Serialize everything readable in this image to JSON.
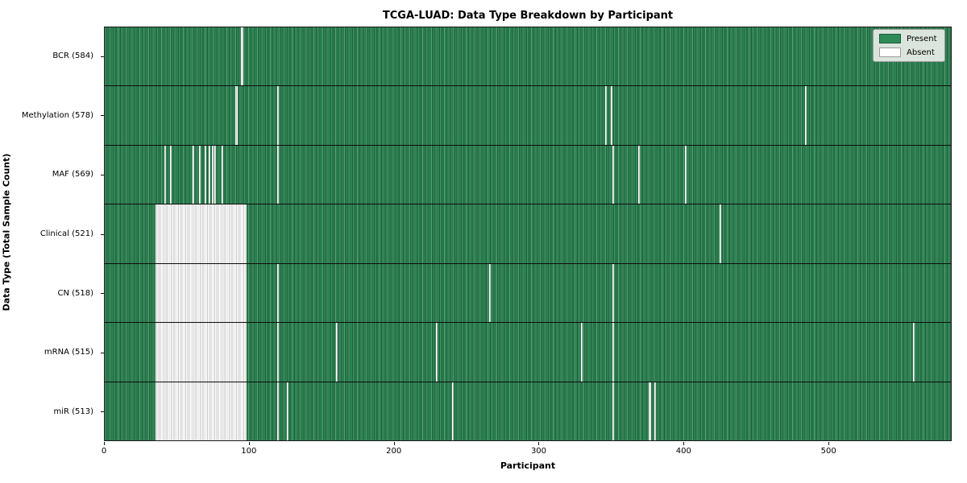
{
  "chart_data": {
    "type": "heatmap",
    "title": "TCGA-LUAD: Data Type Breakdown by Participant",
    "xlabel": "Participant",
    "ylabel": "Data Type (Total Sample Count)",
    "x_max": 585,
    "x_ticks": [
      0,
      100,
      200,
      300,
      400,
      500
    ],
    "grid": false,
    "legend_position": "upper right",
    "colors": {
      "present": "#2e8b57",
      "present_edge": "#1d5c39",
      "absent": "#ffffff",
      "absent_edge": "#c7c7c7",
      "row_separator": "#0d0d0d"
    },
    "legend": [
      {
        "label": "Present",
        "color": "#2e8b57",
        "edge": "#1d5c39"
      },
      {
        "label": "Absent",
        "color": "#ffffff",
        "edge": "#9a9a9a"
      }
    ],
    "rows": [
      {
        "name": "BCR",
        "label": "BCR (584)",
        "present_count": 584,
        "absent_ranges": [
          [
            94,
            96
          ]
        ]
      },
      {
        "name": "Methylation",
        "label": "Methylation (578)",
        "present_count": 578,
        "absent_ranges": [
          [
            90,
            92
          ],
          [
            119,
            120
          ],
          [
            346,
            347
          ],
          [
            350,
            351
          ],
          [
            484,
            485
          ]
        ]
      },
      {
        "name": "MAF",
        "label": "MAF (569)",
        "present_count": 569,
        "absent_ranges": [
          [
            41,
            42
          ],
          [
            45,
            46
          ],
          [
            61,
            62
          ],
          [
            65,
            66
          ],
          [
            69,
            70
          ],
          [
            72,
            73
          ],
          [
            74,
            75
          ],
          [
            76,
            77
          ],
          [
            81,
            82
          ],
          [
            119,
            120
          ],
          [
            351,
            352
          ],
          [
            369,
            370
          ],
          [
            401,
            402
          ]
        ]
      },
      {
        "name": "Clinical",
        "label": "Clinical (521)",
        "present_count": 521,
        "absent_ranges": [
          [
            35,
            98
          ],
          [
            425,
            426
          ]
        ]
      },
      {
        "name": "CN",
        "label": "CN (518)",
        "present_count": 518,
        "absent_ranges": [
          [
            35,
            98
          ],
          [
            119,
            120
          ],
          [
            266,
            267
          ],
          [
            351,
            352
          ]
        ]
      },
      {
        "name": "mRNA",
        "label": "mRNA (515)",
        "present_count": 515,
        "absent_ranges": [
          [
            35,
            98
          ],
          [
            119,
            120
          ],
          [
            160,
            161
          ],
          [
            229,
            230
          ],
          [
            329,
            330
          ],
          [
            351,
            352
          ],
          [
            559,
            560
          ]
        ]
      },
      {
        "name": "miR",
        "label": "miR (513)",
        "present_count": 513,
        "absent_ranges": [
          [
            35,
            98
          ],
          [
            119,
            120
          ],
          [
            126,
            127
          ],
          [
            240,
            241
          ],
          [
            351,
            352
          ],
          [
            376,
            378
          ],
          [
            380,
            381
          ]
        ]
      }
    ]
  }
}
